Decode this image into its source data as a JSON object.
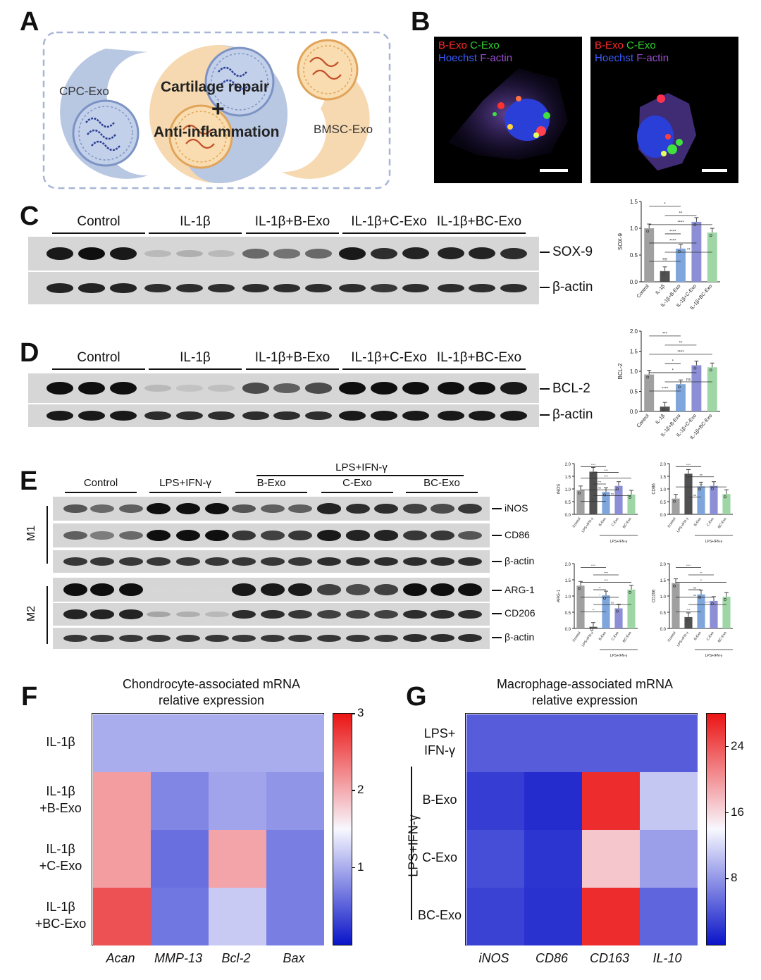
{
  "panels": {
    "A": "A",
    "B": "B",
    "C": "C",
    "D": "D",
    "E": "E",
    "F": "F",
    "G": "G"
  },
  "panelA": {
    "cpc": "CPC-Exo",
    "bmsc": "BMSC-Exo",
    "repair": "Cartilage repair",
    "plus": "+",
    "anti": "Anti-inflammation"
  },
  "panelB": {
    "b_exo": "B-Exo",
    "c_exo": "C-Exo",
    "hoechst": "Hoechst",
    "factin": "F-actin",
    "colors": {
      "b_exo": "#ff2a2a",
      "c_exo": "#2fd12f",
      "hoechst": "#3a5cff",
      "factin": "#9a4fd0"
    }
  },
  "panelC": {
    "groups": [
      "Control",
      "IL-1β",
      "IL-1β+B-Exo",
      "IL-1β+C-Exo",
      "IL-1β+BC-Exo"
    ],
    "proteins": [
      "SOX-9",
      "β-actin"
    ]
  },
  "panelD": {
    "groups": [
      "Control",
      "IL-1β",
      "IL-1β+B-Exo",
      "IL-1β+C-Exo",
      "IL-1β+BC-Exo"
    ],
    "proteins": [
      "BCL-2",
      "β-actin"
    ]
  },
  "panelE": {
    "groups": [
      "Control",
      "LPS+IFN-γ",
      "B-Exo",
      "C-Exo",
      "BC-Exo"
    ],
    "top_label": "LPS+IFN-γ",
    "m1": "M1",
    "m2": "M2",
    "m1_proteins": [
      "iNOS",
      "CD86",
      "β-actin"
    ],
    "m2_proteins": [
      "ARG-1",
      "CD206",
      "β-actin"
    ]
  },
  "chart_data": [
    {
      "type": "bar",
      "panel": "C",
      "ylabel": "SOX-9",
      "categories": [
        "Control",
        "IL-1β",
        "IL-1β+B-Exo",
        "IL-1β+C-Exo",
        "IL-1β+BC-Exo"
      ],
      "values": [
        1.0,
        0.2,
        0.62,
        1.12,
        0.92
      ],
      "ylim": [
        0,
        1.5
      ],
      "yticks": [
        "0.0",
        "0.5",
        "1.0",
        "1.5"
      ],
      "colors": [
        "#a0a0a0",
        "#505050",
        "#7fa6dc",
        "#8c8fd6",
        "#9fd6a6"
      ],
      "sig": [
        "*",
        "**",
        "****",
        "****",
        "****",
        "**",
        "ns"
      ]
    },
    {
      "type": "bar",
      "panel": "D",
      "ylabel": "BCL-2",
      "categories": [
        "Control",
        "IL-1β",
        "IL-1β+B-Exo",
        "IL-1β+C-Exo",
        "IL-1β+BC-Exo"
      ],
      "values": [
        0.92,
        0.12,
        0.68,
        1.15,
        1.1
      ],
      "ylim": [
        0,
        2.0
      ],
      "yticks": [
        "0.0",
        "0.5",
        "1.0",
        "1.5",
        "2.0"
      ],
      "colors": [
        "#a0a0a0",
        "#505050",
        "#7fa6dc",
        "#8c8fd6",
        "#9fd6a6"
      ],
      "sig": [
        "***",
        "**",
        "****",
        "*",
        "*",
        "ns",
        "****"
      ]
    },
    {
      "type": "bar",
      "panel": "E",
      "ylabel": "iNOS",
      "categories": [
        "Control",
        "LPS+IFN-γ",
        "B-Exo",
        "C-Exo",
        "BC-Exo"
      ],
      "values": [
        0.95,
        1.68,
        0.88,
        1.12,
        0.78
      ],
      "ylim": [
        0,
        2.0
      ],
      "yticks": [
        "0.0",
        "0.5",
        "1.0",
        "1.5",
        "2.0"
      ],
      "group_label": "LPS+IFN-γ",
      "colors": [
        "#a0a0a0",
        "#505050",
        "#7fa6dc",
        "#8c8fd6",
        "#9fd6a6"
      ],
      "sig": [
        "****",
        "****",
        "****",
        "***",
        "ns",
        "ns",
        "*"
      ]
    },
    {
      "type": "bar",
      "panel": "E",
      "ylabel": "CD86",
      "categories": [
        "Control",
        "LPS+IFN-γ",
        "B-Exo",
        "C-Exo",
        "BC-Exo"
      ],
      "values": [
        0.62,
        1.6,
        1.1,
        1.12,
        0.8
      ],
      "ylim": [
        0,
        2.0
      ],
      "yticks": [
        "0.0",
        "0.5",
        "1.0",
        "1.5",
        "2.0"
      ],
      "group_label": "LPS+IFN-γ",
      "colors": [
        "#a0a0a0",
        "#505050",
        "#7fa6dc",
        "#8c8fd6",
        "#9fd6a6"
      ],
      "sig": [
        "****",
        "ns",
        "***",
        "ns"
      ]
    },
    {
      "type": "bar",
      "panel": "E",
      "ylabel": "ARG-1",
      "categories": [
        "Control",
        "LPS+IFN-γ",
        "B-Exo",
        "C-Exo",
        "BC-Exo"
      ],
      "values": [
        1.32,
        0.05,
        1.02,
        0.62,
        1.2
      ],
      "ylim": [
        0,
        2.0
      ],
      "yticks": [
        "0.0",
        "0.5",
        "1.0",
        "1.5",
        "2.0"
      ],
      "group_label": "LPS+IFN-γ",
      "colors": [
        "#a0a0a0",
        "#505050",
        "#7fa6dc",
        "#8c8fd6",
        "#9fd6a6"
      ],
      "sig": [
        "****",
        "****",
        "****",
        "**",
        "*",
        "ns",
        "**"
      ]
    },
    {
      "type": "bar",
      "panel": "E",
      "ylabel": "CD206",
      "categories": [
        "Control",
        "LPS+IFN-γ",
        "B-Exo",
        "C-Exo",
        "BC-Exo"
      ],
      "values": [
        1.4,
        0.35,
        1.05,
        0.85,
        0.98
      ],
      "ylim": [
        0,
        2.0
      ],
      "yticks": [
        "0.0",
        "0.5",
        "1.0",
        "1.5",
        "2.0"
      ],
      "group_label": "LPS+IFN-γ",
      "colors": [
        "#a0a0a0",
        "#505050",
        "#7fa6dc",
        "#8c8fd6",
        "#9fd6a6"
      ],
      "sig": [
        "****",
        "**",
        "**",
        "ns",
        "ns",
        "****",
        "***"
      ]
    },
    {
      "type": "heatmap",
      "panel": "F",
      "title": [
        "Chondrocyte-associated mRNA",
        "relative expression"
      ],
      "rows": [
        "IL-1β",
        "IL-1β\n+B-Exo",
        "IL-1β\n+C-Exo",
        "IL-1β\n+BC-Exo"
      ],
      "cols": [
        "Acan",
        "MMP-13",
        "Bcl-2",
        "Bax"
      ],
      "values": [
        [
          1.0,
          1.0,
          1.0,
          1.0
        ],
        [
          2.1,
          0.75,
          0.95,
          0.85
        ],
        [
          2.1,
          0.6,
          2.05,
          0.7
        ],
        [
          2.6,
          0.65,
          1.2,
          0.7
        ]
      ],
      "range": [
        0,
        3
      ],
      "colorbar_ticks": [
        "3",
        "2",
        "1"
      ]
    },
    {
      "type": "heatmap",
      "panel": "G",
      "title": [
        "Macrophage-associated mRNA",
        "relative expression"
      ],
      "rows": [
        "LPS+\nIFN-γ",
        "B-Exo",
        "C-Exo",
        "BC-Exo"
      ],
      "row_group": "LPS+IFN-γ",
      "cols": [
        "iNOS",
        "CD86",
        "CD163",
        "IL-10"
      ],
      "values": [
        [
          4.5,
          4.5,
          4.5,
          4.5
        ],
        [
          2.5,
          1.5,
          26.5,
          11.0
        ],
        [
          3.5,
          2.0,
          17.0,
          8.5
        ],
        [
          2.8,
          1.8,
          26.5,
          5.0
        ]
      ],
      "range": [
        0,
        28
      ],
      "colorbar_ticks": [
        "24",
        "16",
        "8"
      ]
    }
  ]
}
